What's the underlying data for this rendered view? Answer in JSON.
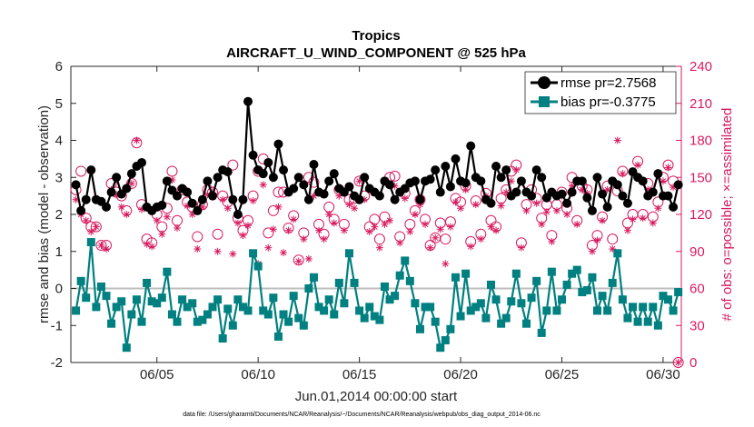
{
  "chart_data": {
    "type": "line",
    "title": "Tropics",
    "subtitle": "AIRCRAFT_U_WIND_COMPONENT @ 525 hPa",
    "xlabel": "Jun.01,2014 00:00:00 start",
    "ylabel": "rmse and bias (model - observation)",
    "ylabel_right": "# of obs: o=possible; ×=assimilated",
    "footnote": "data file: /Users/gharamti/Documents/NCAR/Reanalysis/~/Documents/NCAR/Reanalysis/webpub/obs_diag_output_2014-06.nc",
    "xlim": [
      0.75,
      30.9
    ],
    "ylim": [
      -2,
      6
    ],
    "ylim_right": [
      0,
      240
    ],
    "xticks": [
      5,
      10,
      15,
      20,
      25,
      30
    ],
    "xtick_labels": [
      "06/05",
      "06/10",
      "06/15",
      "06/20",
      "06/25",
      "06/30"
    ],
    "yticks": [
      -2,
      -1,
      0,
      1,
      2,
      3,
      4,
      5,
      6
    ],
    "yticks_right": [
      0,
      30,
      60,
      90,
      120,
      150,
      180,
      210,
      240
    ],
    "legend_position": "top-right",
    "colors": {
      "rmse": "#000000",
      "bias": "#008080",
      "obs": "#d81b60",
      "zero_line": "#bdbdbd",
      "axis": "#262626"
    },
    "x": [
      1.0,
      1.25,
      1.5,
      1.75,
      2.0,
      2.25,
      2.5,
      2.75,
      3.0,
      3.25,
      3.5,
      3.75,
      4.0,
      4.25,
      4.5,
      4.75,
      5.0,
      5.25,
      5.5,
      5.75,
      6.0,
      6.25,
      6.5,
      6.75,
      7.0,
      7.25,
      7.5,
      7.75,
      8.0,
      8.25,
      8.5,
      8.75,
      9.0,
      9.25,
      9.5,
      9.75,
      10.0,
      10.25,
      10.5,
      10.75,
      11.0,
      11.25,
      11.5,
      11.75,
      12.0,
      12.25,
      12.5,
      12.75,
      13.0,
      13.25,
      13.5,
      13.75,
      14.0,
      14.25,
      14.5,
      14.75,
      15.0,
      15.25,
      15.5,
      15.75,
      16.0,
      16.25,
      16.5,
      16.75,
      17.0,
      17.25,
      17.5,
      17.75,
      18.0,
      18.25,
      18.5,
      18.75,
      19.0,
      19.25,
      19.5,
      19.75,
      20.0,
      20.25,
      20.5,
      20.75,
      21.0,
      21.25,
      21.5,
      21.75,
      22.0,
      22.25,
      22.5,
      22.75,
      23.0,
      23.25,
      23.5,
      23.75,
      24.0,
      24.25,
      24.5,
      24.75,
      25.0,
      25.25,
      25.5,
      25.75,
      26.0,
      26.25,
      26.5,
      26.75,
      27.0,
      27.25,
      27.5,
      27.75,
      28.0,
      28.25,
      28.5,
      28.75,
      29.0,
      29.25,
      29.5,
      29.75,
      30.0,
      30.25,
      30.5,
      30.75
    ],
    "series": [
      {
        "name": "rmse",
        "legend": "rmse pr=2.7568",
        "marker": "circle",
        "values": [
          2.8,
          2.1,
          2.4,
          3.2,
          2.4,
          2.35,
          2.2,
          2.6,
          3.0,
          2.55,
          2.7,
          3.1,
          3.3,
          3.4,
          2.2,
          2.1,
          2.2,
          2.25,
          2.9,
          2.65,
          2.5,
          2.7,
          2.6,
          2.3,
          2.1,
          2.4,
          2.9,
          2.5,
          3.0,
          3.2,
          3.15,
          2.4,
          2.0,
          2.4,
          5.05,
          3.6,
          3.2,
          3.1,
          3.4,
          3.0,
          3.9,
          3.2,
          2.6,
          2.7,
          3.0,
          2.8,
          2.4,
          3.35,
          2.6,
          2.55,
          2.9,
          3.1,
          2.7,
          2.6,
          2.75,
          2.5,
          2.4,
          3.0,
          2.7,
          2.6,
          2.5,
          2.9,
          2.8,
          2.4,
          2.6,
          2.7,
          2.85,
          2.9,
          2.4,
          2.9,
          2.95,
          3.2,
          2.6,
          3.3,
          2.75,
          3.5,
          2.9,
          2.85,
          3.85,
          3.0,
          2.9,
          2.4,
          2.3,
          3.3,
          3.0,
          3.2,
          2.5,
          2.6,
          2.9,
          2.6,
          2.5,
          3.2,
          3.0,
          2.45,
          2.6,
          2.5,
          2.55,
          2.3,
          2.6,
          2.9,
          2.9,
          2.45,
          2.1,
          3.0,
          2.55,
          2.2,
          2.9,
          2.8,
          2.5,
          2.3,
          3.15,
          3.0,
          2.9,
          2.5,
          2.6,
          3.1,
          2.5,
          2.5,
          2.2,
          2.8
        ]
      },
      {
        "name": "bias",
        "legend": "bias pr=-0.3775",
        "marker": "square",
        "values": [
          -0.6,
          0.2,
          -0.25,
          1.25,
          -0.5,
          0.05,
          -0.2,
          -0.95,
          -0.5,
          -0.35,
          -1.6,
          -0.7,
          -0.3,
          -0.9,
          0.15,
          -0.35,
          -0.4,
          -0.25,
          0.45,
          -0.7,
          -0.9,
          -0.3,
          -0.5,
          -0.4,
          -0.9,
          -0.85,
          -0.7,
          -0.5,
          -0.3,
          -1.35,
          -0.55,
          -1.0,
          -0.3,
          -0.5,
          -0.6,
          0.95,
          0.6,
          -0.6,
          -0.7,
          -0.25,
          -1.3,
          -0.7,
          -0.9,
          -0.2,
          -0.8,
          -1.0,
          0.0,
          0.3,
          -0.5,
          -0.6,
          -0.3,
          -0.7,
          0.15,
          -0.4,
          0.95,
          0.15,
          -0.6,
          -0.8,
          -0.5,
          -0.75,
          -0.85,
          0.05,
          -0.3,
          -0.2,
          0.35,
          0.75,
          0.2,
          -0.4,
          -1.1,
          -0.5,
          -0.5,
          -0.9,
          -1.6,
          -1.4,
          -1.1,
          0.3,
          -0.75,
          0.4,
          -0.6,
          -0.5,
          -0.4,
          -0.8,
          0.1,
          -0.3,
          -0.95,
          -0.8,
          -0.35,
          0.4,
          -0.4,
          -0.95,
          -0.25,
          0.2,
          -1.2,
          -0.6,
          0.45,
          -0.6,
          -0.3,
          0.1,
          0.4,
          0.5,
          -0.1,
          -0.05,
          0.3,
          -0.6,
          -0.2,
          -0.6,
          0.15,
          0.95,
          -0.3,
          -0.8,
          -0.5,
          -0.9,
          -0.5,
          -0.9,
          -0.5,
          -1.0,
          -0.2,
          -0.3,
          -0.6,
          -0.1
        ]
      },
      {
        "name": "obs_possible",
        "axis": "right",
        "marker": "o",
        "values": [
          140,
          155,
          117,
          110,
          110,
          95,
          95,
          145,
          138,
          135,
          123,
          145,
          178,
          128,
          100,
          97,
          120,
          110,
          125,
          155,
          115,
          140,
          130,
          126,
          102,
          128,
          140,
          138,
          104,
          135,
          130,
          160,
          117,
          107,
          115,
          135,
          155,
          165,
          105,
          123,
          138,
          138,
          109,
          119,
          83,
          105,
          150,
          146,
          112,
          104,
          126,
          116,
          140,
          112,
          132,
          133,
          147,
          135,
          110,
          116,
          100,
          118,
          150,
          151,
          102,
          137,
          112,
          123,
          132,
          116,
          95,
          101,
          113,
          100,
          114,
          133,
          130,
          143,
          98,
          131,
          104,
          137,
          115,
          110,
          133,
          140,
          155,
          160,
          97,
          128,
          140,
          133,
          117,
          128,
          103,
          128,
          138,
          125,
          150,
          115,
          143,
          140,
          95,
          103,
          118,
          143,
          100,
          139,
          155,
          113,
          120,
          163,
          120,
          145,
          118,
          130,
          150,
          160,
          147,
          0
        ]
      },
      {
        "name": "obs_assimilated",
        "axis": "right",
        "marker": "x",
        "values": [
          132,
          120,
          115,
          106,
          110,
          95,
          92,
          140,
          136,
          126,
          120,
          145,
          180,
          124,
          96,
          94,
          115,
          104,
          118,
          148,
          109,
          140,
          127,
          120,
          92,
          126,
          136,
          134,
          90,
          132,
          125,
          88,
          113,
          103,
          111,
          131,
          80,
          144,
          93,
          108,
          126,
          89,
          107,
          116,
          82,
          100,
          84,
          135,
          107,
          100,
          120,
          113,
          135,
          107,
          128,
          125,
          147,
          132,
          106,
          110,
          93,
          112,
          115,
          143,
          97,
          133,
          106,
          120,
          128,
          112,
          93,
          101,
          108,
          80,
          110,
          130,
          125,
          140,
          94,
          128,
          100,
          135,
          110,
          107,
          127,
          138,
          147,
          156,
          93,
          123,
          135,
          129,
          112,
          122,
          98,
          123,
          135,
          120,
          143,
          112,
          140,
          137,
          90,
          99,
          115,
          140,
          92,
          180,
          153,
          107,
          116,
          160,
          117,
          140,
          113,
          125,
          147,
          158,
          142,
          0
        ]
      }
    ]
  }
}
